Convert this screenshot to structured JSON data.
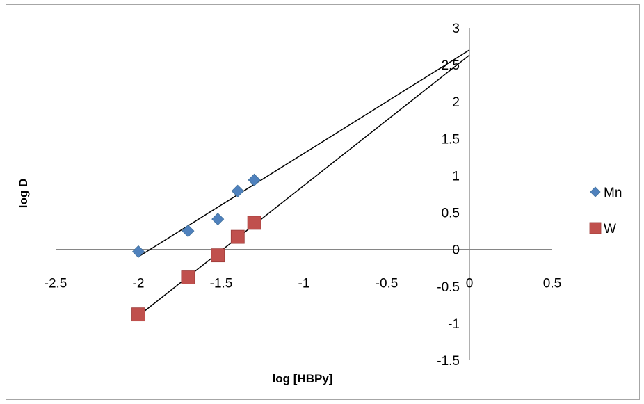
{
  "chart_data": {
    "type": "scatter",
    "title": "",
    "xlabel": "log [HBPy]",
    "ylabel": "log D",
    "xlim": [
      -2.5,
      0.5
    ],
    "ylim": [
      -1.5,
      3
    ],
    "x_ticks": [
      "-2.5",
      "-2",
      "-1.5",
      "-1",
      "-0.5",
      "0",
      "0.5"
    ],
    "y_ticks": [
      "-1.5",
      "-1",
      "-0.5",
      "0",
      "0.5",
      "1",
      "1.5",
      "2",
      "2.5",
      "3"
    ],
    "grid": false,
    "legend_position": "right",
    "series": [
      {
        "name": "Mn",
        "marker": "diamond",
        "color": "#4f81bd",
        "points": [
          {
            "x": -2.0,
            "y": -0.03
          },
          {
            "x": -1.7,
            "y": 0.25
          },
          {
            "x": -1.52,
            "y": 0.41
          },
          {
            "x": -1.4,
            "y": 0.79
          },
          {
            "x": -1.3,
            "y": 0.94
          }
        ],
        "trendline": {
          "from": [
            -2.0,
            -0.1
          ],
          "to": [
            0.0,
            2.7
          ]
        }
      },
      {
        "name": "W",
        "marker": "square",
        "color": "#c0504d",
        "points": [
          {
            "x": -2.0,
            "y": -0.88
          },
          {
            "x": -1.7,
            "y": -0.38
          },
          {
            "x": -1.52,
            "y": -0.08
          },
          {
            "x": -1.4,
            "y": 0.17
          },
          {
            "x": -1.3,
            "y": 0.36
          }
        ],
        "trendline": {
          "from": [
            -2.0,
            -0.9
          ],
          "to": [
            0.0,
            2.63
          ]
        }
      }
    ]
  }
}
